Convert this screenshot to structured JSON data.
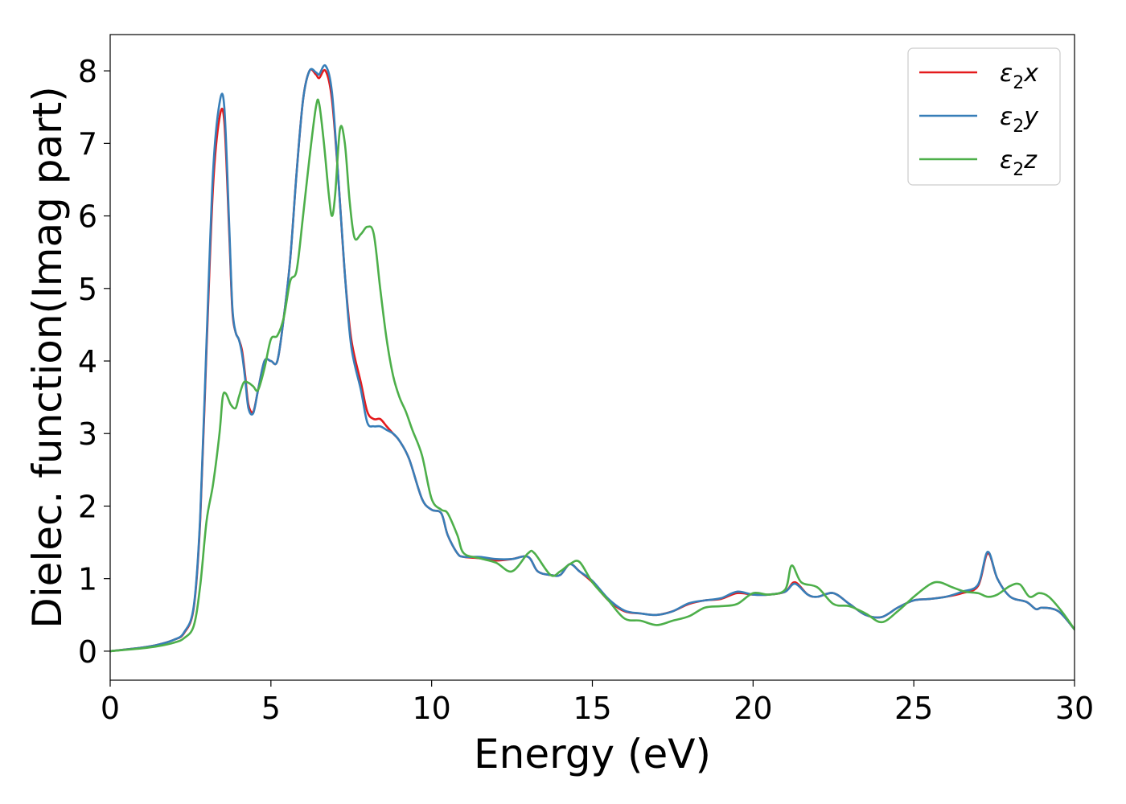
{
  "chart_data": {
    "type": "line",
    "xlabel": "Energy (eV)",
    "ylabel": "Dielec. function(Imag part)",
    "xlim": [
      0,
      30
    ],
    "ylim": [
      -0.4,
      8.5
    ],
    "xticks": [
      0,
      5,
      10,
      15,
      20,
      25,
      30
    ],
    "yticks": [
      0,
      1,
      2,
      3,
      4,
      5,
      6,
      7,
      8
    ],
    "grid": false,
    "legend": "top-right",
    "series": [
      {
        "name": "ε₂x",
        "legend_base": "ε",
        "legend_sub": "2",
        "legend_suffix": "x",
        "color": "#e41a1c",
        "x": [
          0,
          1,
          1.5,
          2,
          2.3,
          2.6,
          2.8,
          3.0,
          3.2,
          3.4,
          3.55,
          3.7,
          3.8,
          3.9,
          4.0,
          4.1,
          4.2,
          4.3,
          4.45,
          4.6,
          4.8,
          5.0,
          5.2,
          5.4,
          5.6,
          5.8,
          6.0,
          6.2,
          6.4,
          6.5,
          6.7,
          6.9,
          7.1,
          7.3,
          7.5,
          7.8,
          8.0,
          8.2,
          8.4,
          8.6,
          8.8,
          9.0,
          9.3,
          9.7,
          10.0,
          10.3,
          10.5,
          10.8,
          11.0,
          11.5,
          12.0,
          12.5,
          13.0,
          13.3,
          13.7,
          14.0,
          14.3,
          14.6,
          15.0,
          15.5,
          16.0,
          16.5,
          17.0,
          17.5,
          18.0,
          18.5,
          19.0,
          19.5,
          20.0,
          20.5,
          21.0,
          21.3,
          21.7,
          22.0,
          22.5,
          23.0,
          23.5,
          24.0,
          24.5,
          25.0,
          25.5,
          26.0,
          26.5,
          27.0,
          27.3,
          27.6,
          28.0,
          28.5,
          28.8,
          29.0,
          29.5,
          30.0
        ],
        "values": [
          0.0,
          0.05,
          0.09,
          0.16,
          0.25,
          0.6,
          1.8,
          4.2,
          6.4,
          7.35,
          7.3,
          5.8,
          4.7,
          4.4,
          4.3,
          4.15,
          3.8,
          3.4,
          3.3,
          3.6,
          4.0,
          4.0,
          4.0,
          4.6,
          5.4,
          6.6,
          7.6,
          8.0,
          7.95,
          7.9,
          8.0,
          7.6,
          6.5,
          5.2,
          4.3,
          3.7,
          3.3,
          3.2,
          3.2,
          3.1,
          3.0,
          2.9,
          2.65,
          2.1,
          1.95,
          1.9,
          1.6,
          1.35,
          1.3,
          1.28,
          1.25,
          1.27,
          1.3,
          1.1,
          1.05,
          1.05,
          1.2,
          1.1,
          0.95,
          0.7,
          0.55,
          0.52,
          0.5,
          0.55,
          0.65,
          0.7,
          0.72,
          0.8,
          0.78,
          0.78,
          0.82,
          0.95,
          0.78,
          0.75,
          0.8,
          0.65,
          0.5,
          0.47,
          0.6,
          0.7,
          0.72,
          0.75,
          0.8,
          0.9,
          1.35,
          1.0,
          0.75,
          0.68,
          0.58,
          0.6,
          0.55,
          0.3
        ]
      },
      {
        "name": "ε₂y",
        "legend_base": "ε",
        "legend_sub": "2",
        "legend_suffix": "y",
        "color": "#377eb8",
        "x": [
          0,
          1,
          1.5,
          2,
          2.3,
          2.6,
          2.8,
          3.0,
          3.2,
          3.4,
          3.55,
          3.7,
          3.8,
          3.9,
          4.0,
          4.1,
          4.2,
          4.3,
          4.45,
          4.6,
          4.8,
          5.0,
          5.2,
          5.4,
          5.6,
          5.8,
          6.0,
          6.2,
          6.4,
          6.5,
          6.7,
          6.9,
          7.1,
          7.3,
          7.5,
          7.8,
          8.0,
          8.2,
          8.4,
          8.6,
          8.8,
          9.0,
          9.3,
          9.7,
          10.0,
          10.3,
          10.5,
          10.8,
          11.0,
          11.5,
          12.0,
          12.5,
          13.0,
          13.3,
          13.7,
          14.0,
          14.3,
          14.6,
          15.0,
          15.5,
          16.0,
          16.5,
          17.0,
          17.5,
          18.0,
          18.5,
          19.0,
          19.5,
          20.0,
          20.5,
          21.0,
          21.3,
          21.7,
          22.0,
          22.5,
          23.0,
          23.5,
          24.0,
          24.5,
          25.0,
          25.5,
          26.0,
          26.5,
          27.0,
          27.3,
          27.6,
          28.0,
          28.5,
          28.8,
          29.0,
          29.5,
          30.0
        ],
        "values": [
          0.0,
          0.05,
          0.09,
          0.16,
          0.26,
          0.62,
          1.85,
          4.3,
          6.6,
          7.55,
          7.5,
          5.9,
          4.75,
          4.4,
          4.3,
          4.1,
          3.75,
          3.35,
          3.28,
          3.6,
          4.0,
          4.0,
          4.0,
          4.6,
          5.4,
          6.6,
          7.6,
          8.0,
          7.98,
          7.95,
          8.07,
          7.7,
          6.5,
          5.2,
          4.2,
          3.6,
          3.15,
          3.1,
          3.1,
          3.05,
          3.0,
          2.9,
          2.65,
          2.1,
          1.95,
          1.9,
          1.6,
          1.35,
          1.3,
          1.3,
          1.27,
          1.27,
          1.3,
          1.1,
          1.05,
          1.05,
          1.2,
          1.1,
          0.97,
          0.72,
          0.56,
          0.52,
          0.5,
          0.55,
          0.66,
          0.7,
          0.73,
          0.82,
          0.78,
          0.78,
          0.82,
          0.93,
          0.78,
          0.75,
          0.8,
          0.65,
          0.5,
          0.47,
          0.6,
          0.7,
          0.72,
          0.75,
          0.82,
          0.92,
          1.37,
          1.0,
          0.75,
          0.68,
          0.58,
          0.6,
          0.55,
          0.3
        ]
      },
      {
        "name": "ε₂z",
        "legend_base": "ε",
        "legend_sub": "2",
        "legend_suffix": "z",
        "color": "#4daf4a",
        "x": [
          0,
          1,
          1.5,
          2,
          2.3,
          2.6,
          2.8,
          3.0,
          3.2,
          3.4,
          3.5,
          3.6,
          3.75,
          3.9,
          4.0,
          4.15,
          4.3,
          4.45,
          4.6,
          4.8,
          5.0,
          5.2,
          5.4,
          5.6,
          5.8,
          6.0,
          6.2,
          6.4,
          6.5,
          6.65,
          6.8,
          6.9,
          7.0,
          7.15,
          7.3,
          7.45,
          7.6,
          7.8,
          8.0,
          8.2,
          8.4,
          8.6,
          8.8,
          9.0,
          9.2,
          9.4,
          9.7,
          10.0,
          10.3,
          10.5,
          10.8,
          11.0,
          11.5,
          12.0,
          12.5,
          13.0,
          13.2,
          13.7,
          14.0,
          14.3,
          14.6,
          15.0,
          15.5,
          16.0,
          16.5,
          17.0,
          17.5,
          18.0,
          18.5,
          19.0,
          19.5,
          20.0,
          20.5,
          21.0,
          21.2,
          21.5,
          22.0,
          22.5,
          23.0,
          23.5,
          24.0,
          24.5,
          25.0,
          25.5,
          25.8,
          26.2,
          26.6,
          27.0,
          27.3,
          27.6,
          28.0,
          28.3,
          28.6,
          28.9,
          29.2,
          29.6,
          30.0
        ],
        "values": [
          0.0,
          0.04,
          0.07,
          0.12,
          0.18,
          0.35,
          0.9,
          1.8,
          2.3,
          3.0,
          3.5,
          3.55,
          3.4,
          3.35,
          3.5,
          3.7,
          3.7,
          3.65,
          3.6,
          3.9,
          4.3,
          4.35,
          4.6,
          5.1,
          5.25,
          6.0,
          6.8,
          7.5,
          7.55,
          7.0,
          6.3,
          6.0,
          6.3,
          7.2,
          7.0,
          6.2,
          5.7,
          5.75,
          5.85,
          5.75,
          5.0,
          4.3,
          3.8,
          3.5,
          3.3,
          3.05,
          2.7,
          2.1,
          1.95,
          1.9,
          1.6,
          1.35,
          1.28,
          1.22,
          1.1,
          1.35,
          1.35,
          1.05,
          1.1,
          1.2,
          1.23,
          0.95,
          0.7,
          0.45,
          0.42,
          0.36,
          0.42,
          0.48,
          0.6,
          0.62,
          0.65,
          0.8,
          0.78,
          0.85,
          1.18,
          0.95,
          0.88,
          0.65,
          0.62,
          0.52,
          0.4,
          0.55,
          0.75,
          0.92,
          0.95,
          0.88,
          0.82,
          0.8,
          0.75,
          0.78,
          0.9,
          0.92,
          0.75,
          0.8,
          0.75,
          0.55,
          0.3
        ]
      }
    ]
  }
}
